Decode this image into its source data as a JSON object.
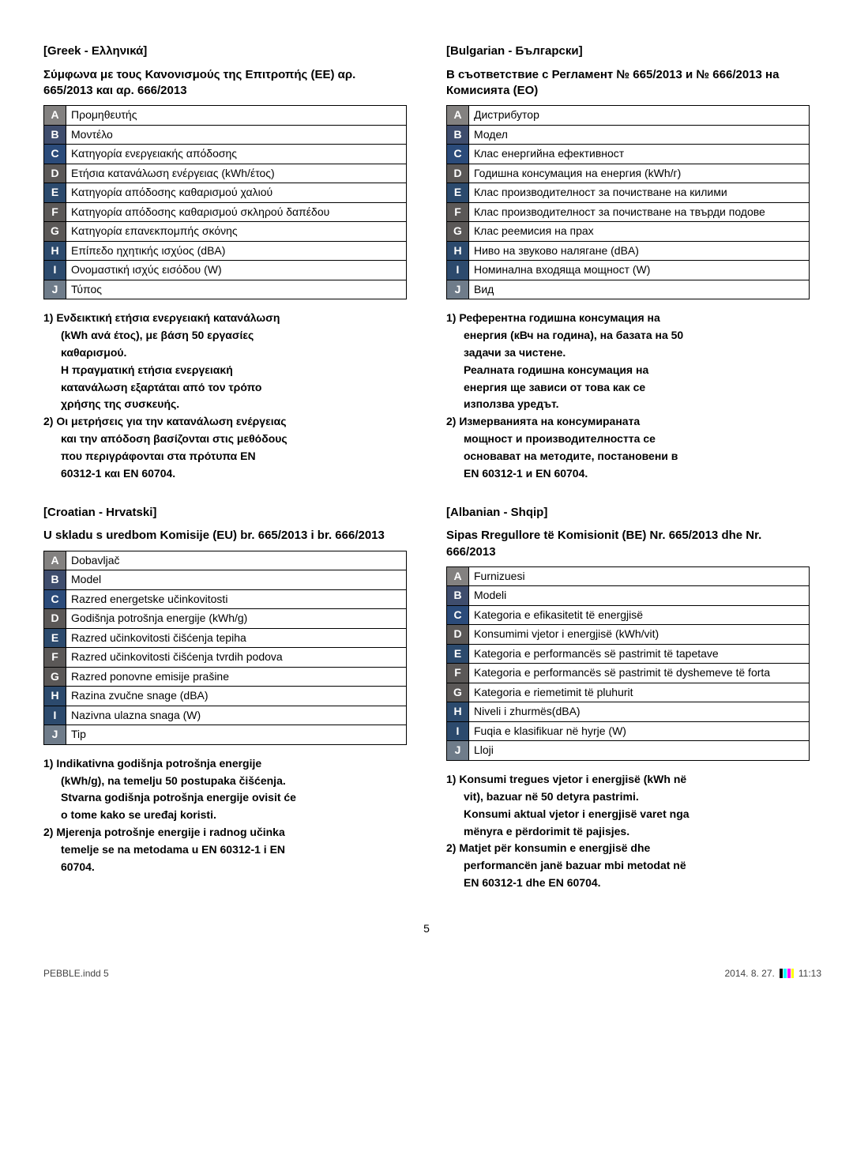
{
  "letter_colors": {
    "A": "#838180",
    "B": "#3f4d6d",
    "C": "#2b4b7a",
    "D": "#5b5857",
    "E": "#2c4a6d",
    "F": "#5b5857",
    "G": "#5b5857",
    "H": "#2c4a6d",
    "I": "#2c4a6d",
    "J": "#6f7c8a"
  },
  "page_number": "5",
  "footer": {
    "left": "PEBBLE.indd   5",
    "date": "2014. 8. 27.",
    "time": "11:13"
  },
  "left_col": {
    "greek": {
      "lang_title": " [Greek - Ελληνικά]",
      "subtitle": "Σύμφωνα με τους Κανονισμούς της Επιτροπής (ΕΕ) αρ. 665/2013 και αρ. 666/2013",
      "rows": [
        {
          "l": "A",
          "t": "Προμηθευτής"
        },
        {
          "l": "B",
          "t": "Μοντέλο"
        },
        {
          "l": "C",
          "t": "Κατηγορία ενεργειακής απόδοσης"
        },
        {
          "l": "D",
          "t": "Ετήσια κατανάλωση ενέργειας (kWh/έτος)"
        },
        {
          "l": "E",
          "t": "Κατηγορία απόδοσης καθαρισμού χαλιού"
        },
        {
          "l": "F",
          "t": "Κατηγορία απόδοσης καθαρισμού σκληρού δαπέδου"
        },
        {
          "l": "G",
          "t": "Κατηγορία επανεκπομπής σκόνης"
        },
        {
          "l": "H",
          "t": "Επίπεδο ηχητικής ισχύος (dBA)"
        },
        {
          "l": "I",
          "t": "Ονομαστική ισχύς εισόδου (W)"
        },
        {
          "l": "J",
          "t": "Τύπος"
        }
      ],
      "notes": [
        {
          "first": "1) Ενδεικτική ετήσια ενεργειακή κατανάλωση",
          "rest": [
            "(kWh ανά έτος), με βάση 50 εργασίες",
            "καθαρισμού.",
            "Η πραγματική ετήσια ενεργειακή",
            "κατανάλωση εξαρτάται από τον τρόπο",
            "χρήσης της συσκευής."
          ]
        },
        {
          "first": "2) Οι μετρήσεις για την κατανάλωση ενέργειας",
          "rest": [
            "και την απόδοση βασίζονται στις μεθόδους",
            "που περιγράφονται στα πρότυπα EN",
            "60312-1 και EN 60704."
          ]
        }
      ]
    },
    "croatian": {
      "lang_title": "[Croatian - Hrvatski]",
      "subtitle": "U skladu s uredbom Komisije (EU) br. 665/2013 i br. 666/2013",
      "rows": [
        {
          "l": "A",
          "t": "Dobavljač"
        },
        {
          "l": "B",
          "t": "Model"
        },
        {
          "l": "C",
          "t": "Razred energetske učinkovitosti"
        },
        {
          "l": "D",
          "t": "Godišnja potrošnja energije (kWh/g)"
        },
        {
          "l": "E",
          "t": "Razred učinkovitosti čišćenja tepiha"
        },
        {
          "l": "F",
          "t": "Razred učinkovitosti čišćenja tvrdih podova"
        },
        {
          "l": "G",
          "t": "Razred ponovne emisije prašine"
        },
        {
          "l": "H",
          "t": "Razina zvučne snage (dBA)"
        },
        {
          "l": "I",
          "t": "Nazivna ulazna snaga (W)"
        },
        {
          "l": "J",
          "t": "Tip"
        }
      ],
      "notes": [
        {
          "first": "1) Indikativna godišnja potrošnja energije",
          "rest": [
            "(kWh/g), na temelju 50 postupaka čišćenja.",
            "Stvarna godišnja potrošnja energije ovisit će",
            "o tome kako se uređaj koristi."
          ]
        },
        {
          "first": "2) Mjerenja potrošnje energije i radnog učinka",
          "rest": [
            "temelje se na metodama u EN 60312-1 i EN",
            "60704."
          ]
        }
      ]
    }
  },
  "right_col": {
    "bulgarian": {
      "lang_title": "[Bulgarian - Български]",
      "subtitle": "В съответствие с Регламент № 665/2013 и № 666/2013 на Комисията (ЕО)",
      "rows": [
        {
          "l": "A",
          "t": "Дистрибутор"
        },
        {
          "l": "B",
          "t": "Модел"
        },
        {
          "l": "C",
          "t": "Клас енергийна ефективност"
        },
        {
          "l": "D",
          "t": "Годишна консумация на енергия (kWh/г)"
        },
        {
          "l": "E",
          "t": "Клас производителност за почистване на килими"
        },
        {
          "l": "F",
          "t": "Клас производителност за почистване на твърди подове"
        },
        {
          "l": "G",
          "t": "Клас реемисия на прах"
        },
        {
          "l": "H",
          "t": "Ниво на звуково налягане (dBA)"
        },
        {
          "l": "I",
          "t": "Номинална входяща мощност (W)"
        },
        {
          "l": "J",
          "t": "Вид"
        }
      ],
      "notes": [
        {
          "first": "1) Референтна годишна консумация на",
          "rest": [
            "енергия (кВч на година), на базата на 50",
            "задачи за чистене.",
            "Реалната годишна консумация на",
            "енергия ще зависи от това как се",
            "използва уредът."
          ]
        },
        {
          "first": "2) Измерванията на консумираната",
          "rest": [
            "мощност и производителността се",
            "основават на методите, постановени в",
            "EN 60312-1 и EN 60704."
          ]
        }
      ]
    },
    "albanian": {
      "lang_title": "[Albanian - Shqip]",
      "subtitle": "Sipas Rregullore të Komisionit (BE) Nr. 665/2013 dhe Nr. 666/2013",
      "rows": [
        {
          "l": "A",
          "t": "Furnizuesi"
        },
        {
          "l": "B",
          "t": "Modeli"
        },
        {
          "l": "C",
          "t": "Kategoria e efikasitetit të energjisë"
        },
        {
          "l": "D",
          "t": "Konsumimi vjetor i energjisë (kWh/vit)"
        },
        {
          "l": "E",
          "t": "Kategoria e performancës së pastrimit të tapetave"
        },
        {
          "l": "F",
          "t": "Kategoria e performancës së pastrimit të dyshemeve të forta"
        },
        {
          "l": "G",
          "t": "Kategoria e riemetimit të pluhurit"
        },
        {
          "l": "H",
          "t": "Niveli i zhurmës(dBA)"
        },
        {
          "l": "I",
          "t": "Fuqia e klasifikuar në hyrje (W)"
        },
        {
          "l": "J",
          "t": "Lloji"
        }
      ],
      "notes": [
        {
          "first": "1) Konsumi tregues vjetor i energjisë (kWh në",
          "rest": [
            "vit), bazuar në 50 detyra pastrimi.",
            "Konsumi aktual vjetor i energjisë varet nga",
            "mënyra e përdorimit të pajisjes."
          ]
        },
        {
          "first": "2) Matjet për konsumin e energjisë dhe",
          "rest": [
            "performancën janë bazuar mbi metodat në",
            "EN 60312-1 dhe EN 60704."
          ]
        }
      ]
    }
  }
}
